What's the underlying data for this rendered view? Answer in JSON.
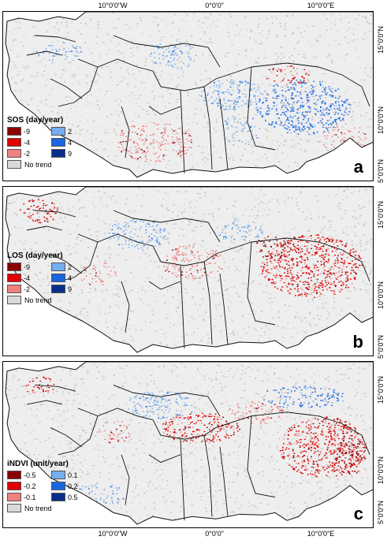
{
  "coordinates": {
    "top": [
      "10°0'0\"W",
      "0°0'0\"",
      "10°0'0\"E"
    ],
    "bottom": [
      "10°0'0\"W",
      "0°0'0\"",
      "10°0'0\"E"
    ],
    "right": [
      "15°0'0\"N",
      "10°0'0\"N",
      "5°0'0\"N"
    ]
  },
  "colors": {
    "neg_strong": "#8b0000",
    "neg_mid": "#e00000",
    "neg_weak": "#f08080",
    "pos_weak": "#74aef0",
    "pos_mid": "#1a66e0",
    "pos_strong": "#08308a",
    "no_trend": "#d9d9d9"
  },
  "panels": [
    {
      "letter": "a",
      "legend_title": "SOS (day/year)",
      "neg_labels": [
        "-9",
        "-4",
        "-2"
      ],
      "pos_labels": [
        "2",
        "4",
        "9"
      ],
      "no_trend_label": "No trend",
      "pattern": "sos"
    },
    {
      "letter": "b",
      "legend_title": "LOS (day/year)",
      "neg_labels": [
        "-9",
        "-4",
        "-2"
      ],
      "pos_labels": [
        "2",
        "4",
        "9"
      ],
      "no_trend_label": "No trend",
      "pattern": "los"
    },
    {
      "letter": "c",
      "legend_title": "iNDVI (unit/year)",
      "neg_labels": [
        "-0.5",
        "-0.2",
        "-0.1"
      ],
      "pos_labels": [
        "0.1",
        "0.2",
        "0.5"
      ],
      "no_trend_label": "No trend",
      "pattern": "indvi"
    }
  ]
}
